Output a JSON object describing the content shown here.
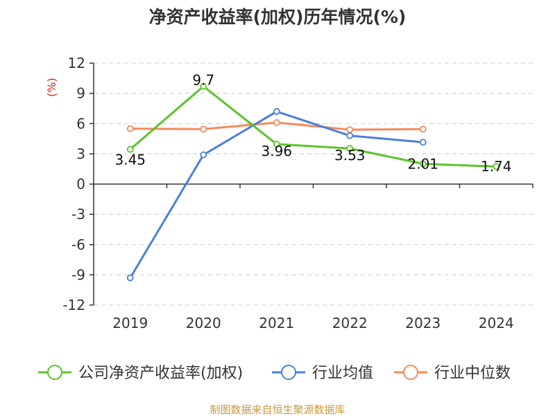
{
  "chart_data": {
    "type": "line",
    "title": "净资产收益率(加权)历年情况(%)",
    "ylabel": "(%)",
    "ylim": [
      -12,
      12
    ],
    "yticks": [
      12,
      9,
      6,
      3,
      0,
      -3,
      -6,
      -9,
      -12
    ],
    "categories": [
      "2019",
      "2020",
      "2021",
      "2022",
      "2023",
      "2024"
    ],
    "series": [
      {
        "name": "公司净资产收益率(加权)",
        "color": "#5cc42a",
        "values": [
          3.45,
          9.7,
          3.96,
          3.53,
          2.01,
          1.74
        ],
        "labels": [
          "3.45",
          "9.7",
          "3.96",
          "3.53",
          "2.01",
          "1.74"
        ]
      },
      {
        "name": "行业均值",
        "color": "#4b7fdc",
        "values": [
          -9.3,
          2.9,
          7.2,
          4.8,
          4.15,
          null
        ]
      },
      {
        "name": "行业中位数",
        "color": "#f58a5a",
        "values": [
          5.5,
          5.45,
          6.1,
          5.4,
          5.45,
          null
        ]
      }
    ],
    "legend_position": "bottom",
    "grid": true
  },
  "source": "制图数据来自恒生聚源数据库"
}
